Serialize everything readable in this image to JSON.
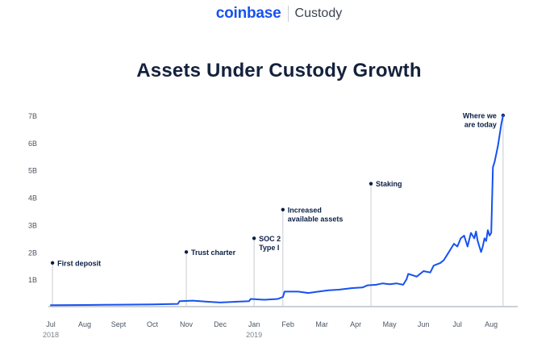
{
  "brand": {
    "name": "coinbase",
    "product": "Custody"
  },
  "colors": {
    "line": "#1652f0",
    "title": "#14213d",
    "axis_text": "#4a5563",
    "annotation": "#0b1f44",
    "leader": "#c8ccd2"
  },
  "chart_data": {
    "type": "line",
    "title": "Assets Under Custody Growth",
    "xlabel": "",
    "ylabel": "",
    "x_unit": "months since Jul 1, 2018",
    "xlim": [
      0,
      13.4
    ],
    "ylim": [
      0,
      7
    ],
    "grid": false,
    "legend": "none",
    "y_ticks": [
      {
        "value": 7,
        "label": "7B"
      },
      {
        "value": 6,
        "label": "6B"
      },
      {
        "value": 5,
        "label": "5B"
      },
      {
        "value": 4,
        "label": "4B"
      },
      {
        "value": 3,
        "label": "3B"
      },
      {
        "value": 2,
        "label": "2B"
      },
      {
        "value": 1,
        "label": "1B"
      }
    ],
    "x_ticks": [
      {
        "value": 0,
        "label": "Jul",
        "sublabel": "2018"
      },
      {
        "value": 1,
        "label": "Aug",
        "sublabel": ""
      },
      {
        "value": 2,
        "label": "Sept",
        "sublabel": ""
      },
      {
        "value": 3,
        "label": "Oct",
        "sublabel": ""
      },
      {
        "value": 4,
        "label": "Nov",
        "sublabel": ""
      },
      {
        "value": 5,
        "label": "Dec",
        "sublabel": ""
      },
      {
        "value": 6,
        "label": "Jan",
        "sublabel": "2019"
      },
      {
        "value": 7,
        "label": "Feb",
        "sublabel": ""
      },
      {
        "value": 8,
        "label": "Mar",
        "sublabel": ""
      },
      {
        "value": 9,
        "label": "Apr",
        "sublabel": ""
      },
      {
        "value": 10,
        "label": "May",
        "sublabel": ""
      },
      {
        "value": 11,
        "label": "Jun",
        "sublabel": ""
      },
      {
        "value": 12,
        "label": "Jul",
        "sublabel": ""
      },
      {
        "value": 13,
        "label": "Aug",
        "sublabel": ""
      }
    ],
    "series": [
      {
        "name": "Assets Under Custody",
        "x": [
          0,
          1,
          2,
          3,
          3.75,
          3.8,
          4.2,
          4.6,
          5.0,
          5.5,
          5.85,
          5.9,
          6.3,
          6.7,
          6.85,
          6.9,
          7.3,
          7.6,
          7.9,
          8.2,
          8.5,
          8.9,
          9.2,
          9.35,
          9.6,
          9.8,
          10.0,
          10.2,
          10.4,
          10.5,
          10.55,
          10.8,
          11.0,
          11.2,
          11.3,
          11.5,
          11.6,
          11.7,
          11.8,
          11.9,
          12.0,
          12.1,
          12.2,
          12.3,
          12.4,
          12.5,
          12.55,
          12.6,
          12.65,
          12.7,
          12.75,
          12.8,
          12.85,
          12.9,
          12.95,
          13.0,
          13.05,
          13.1,
          13.15,
          13.2,
          13.25,
          13.3,
          13.35
        ],
        "values": [
          0.05,
          0.06,
          0.07,
          0.08,
          0.1,
          0.2,
          0.22,
          0.18,
          0.15,
          0.18,
          0.2,
          0.28,
          0.25,
          0.28,
          0.35,
          0.55,
          0.55,
          0.5,
          0.55,
          0.6,
          0.62,
          0.68,
          0.7,
          0.78,
          0.8,
          0.85,
          0.82,
          0.85,
          0.8,
          1.0,
          1.2,
          1.1,
          1.3,
          1.25,
          1.5,
          1.6,
          1.7,
          1.9,
          2.1,
          2.3,
          2.2,
          2.5,
          2.6,
          2.2,
          2.7,
          2.5,
          2.75,
          2.4,
          2.2,
          2.0,
          2.2,
          2.5,
          2.4,
          2.8,
          2.6,
          2.7,
          5.1,
          5.3,
          5.6,
          5.9,
          6.3,
          6.7,
          7.0
        ]
      }
    ],
    "annotations": [
      {
        "x": 0.05,
        "y": 1.6,
        "lines": [
          "First deposit"
        ],
        "side": "right"
      },
      {
        "x": 4.0,
        "y": 2.0,
        "lines": [
          "Trust charter"
        ],
        "side": "right"
      },
      {
        "x": 6.0,
        "y": 2.5,
        "lines": [
          "SOC 2",
          "Type I"
        ],
        "side": "right"
      },
      {
        "x": 6.85,
        "y": 3.55,
        "lines": [
          "Increased",
          "available assets"
        ],
        "side": "right"
      },
      {
        "x": 9.45,
        "y": 4.5,
        "lines": [
          "Staking"
        ],
        "side": "right"
      },
      {
        "x": 13.35,
        "y": 7.0,
        "lines": [
          "Where we",
          "are today"
        ],
        "side": "left"
      }
    ]
  }
}
